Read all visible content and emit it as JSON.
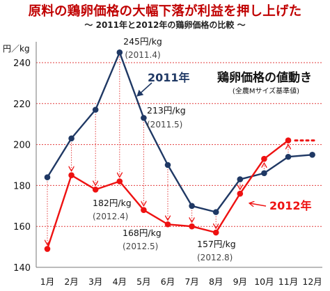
{
  "title": "原料の鶏卵価格の大幅下落が利益を押し上げた",
  "subtitle": "～ 2011年と2012年の鶏卵価格の比較 ～",
  "chart_data": {
    "type": "line",
    "categories": [
      "1月",
      "2月",
      "3月",
      "4月",
      "5月",
      "6月",
      "7月",
      "8月",
      "9月",
      "10月",
      "11月",
      "12月"
    ],
    "yunit": "円／kg",
    "ylim": [
      140,
      250
    ],
    "yticks": [
      140,
      160,
      180,
      200,
      220,
      240
    ],
    "grid": true,
    "panel_title": "鶏卵価格の値動き",
    "panel_note": "(全農Mサイズ基準値)",
    "series": [
      {
        "name": "2011年",
        "color": "#1f3864",
        "values": [
          184,
          203,
          217,
          245,
          213,
          190,
          170,
          167,
          183,
          186,
          194,
          195
        ]
      },
      {
        "name": "2012年",
        "color": "#ee1111",
        "values": [
          149,
          185,
          178,
          182,
          168,
          161,
          160,
          157,
          176,
          193,
          202,
          null
        ]
      }
    ],
    "annotations": [
      {
        "text1": "245円/kg",
        "text2": "(2011.4)"
      },
      {
        "text1": "213円/kg",
        "text2": "(2011.5)"
      },
      {
        "text1": "182円/kg",
        "text2": "(2012.4)"
      },
      {
        "text1": "168円/kg",
        "text2": "(2012.5)"
      },
      {
        "text1": "157円/kg",
        "text2": "(2012.8)"
      }
    ]
  }
}
